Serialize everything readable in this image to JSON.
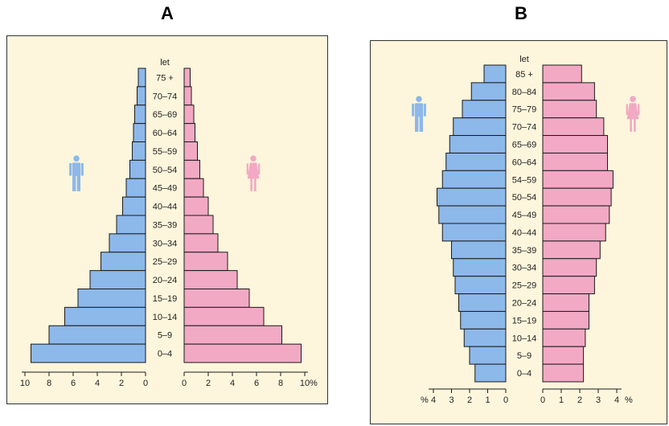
{
  "chart_data": [
    {
      "panel_label": "A",
      "type": "bar",
      "orientation": "horizontal-pyramid",
      "age_header": "let",
      "unit_label": "%",
      "xlim": [
        0,
        10
      ],
      "ticks_male": [
        "10",
        "8",
        "6",
        "4",
        "2",
        "0"
      ],
      "ticks_female": [
        "0",
        "2",
        "4",
        "6",
        "8",
        "10"
      ],
      "male_icon": "male-figure-icon",
      "female_icon": "female-figure-icon",
      "male_color": "#8db8ea",
      "female_color": "#f2a9c4",
      "categories": [
        "75 +",
        "70–74",
        "65–69",
        "60–64",
        "55–59",
        "50–54",
        "45–49",
        "40–44",
        "35–39",
        "30–34",
        "25–29",
        "20–24",
        "15–19",
        "10–14",
        "5–9",
        "0–4"
      ],
      "series": [
        {
          "values": [
            0.6,
            0.7,
            0.9,
            1.0,
            1.1,
            1.3,
            1.6,
            1.9,
            2.4,
            3.0,
            3.7,
            4.6,
            5.6,
            6.7,
            8.0,
            9.5
          ]
        },
        {
          "values": [
            0.5,
            0.6,
            0.8,
            0.9,
            1.1,
            1.3,
            1.6,
            2.0,
            2.4,
            2.8,
            3.6,
            4.4,
            5.4,
            6.6,
            8.1,
            9.7
          ]
        }
      ]
    },
    {
      "panel_label": "B",
      "type": "bar",
      "orientation": "horizontal-pyramid",
      "age_header": "let",
      "unit_label": "%",
      "xlim": [
        0,
        4
      ],
      "ticks_male": [
        "4",
        "3",
        "2",
        "1",
        "0"
      ],
      "ticks_female": [
        "0",
        "1",
        "2",
        "3",
        "4"
      ],
      "male_icon": "male-figure-icon",
      "female_icon": "female-figure-icon",
      "male_color": "#8db8ea",
      "female_color": "#f2a9c4",
      "categories": [
        "85 +",
        "80–84",
        "75–79",
        "70–74",
        "65–69",
        "60–64",
        "54–59",
        "50–54",
        "45–49",
        "40–44",
        "35–39",
        "30–34",
        "25–29",
        "20–24",
        "15–19",
        "10–14",
        "5–9",
        "0–4"
      ],
      "series": [
        {
          "values": [
            1.2,
            1.9,
            2.4,
            2.9,
            3.1,
            3.3,
            3.5,
            3.8,
            3.7,
            3.5,
            3.0,
            2.9,
            2.8,
            2.6,
            2.5,
            2.3,
            2.0,
            1.7
          ]
        },
        {
          "values": [
            2.1,
            2.8,
            2.9,
            3.3,
            3.5,
            3.5,
            3.8,
            3.7,
            3.6,
            3.4,
            3.1,
            2.9,
            2.8,
            2.5,
            2.5,
            2.3,
            2.2,
            2.2
          ]
        }
      ]
    }
  ]
}
